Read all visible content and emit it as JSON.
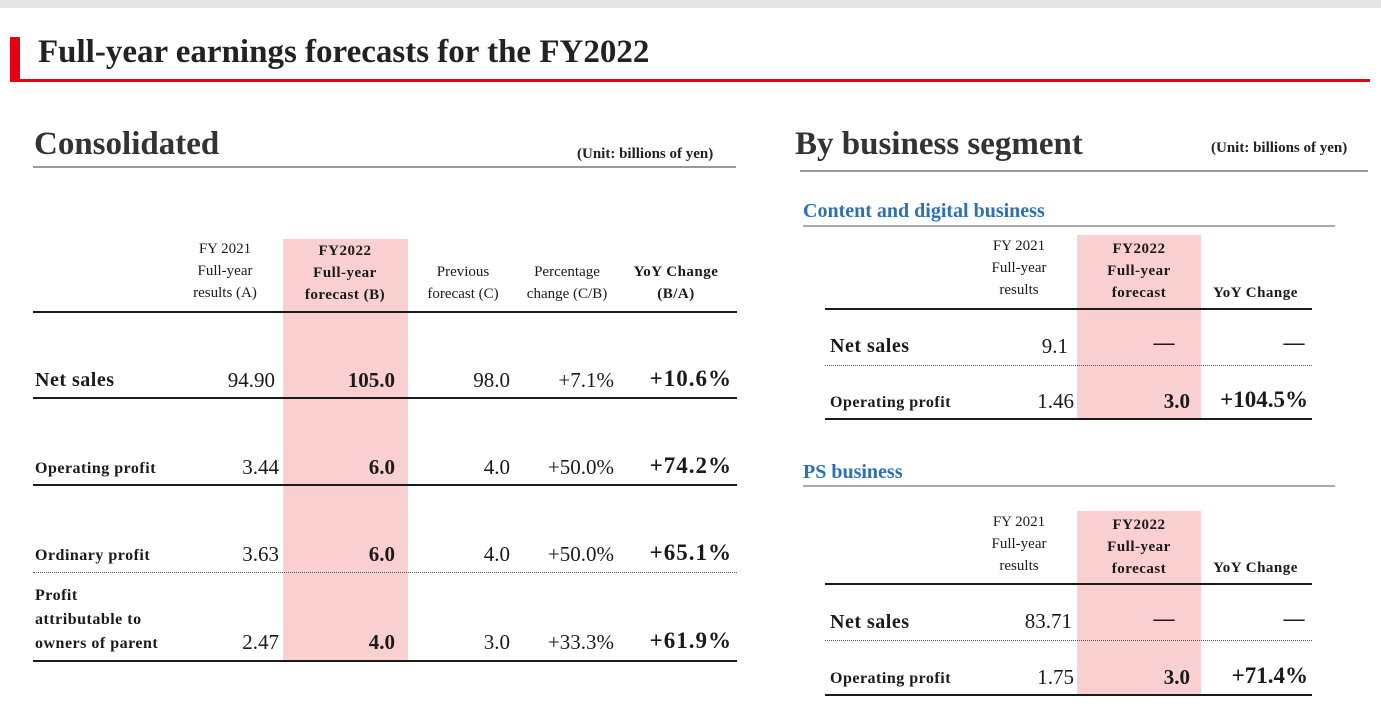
{
  "title": "Full-year earnings forecasts for the FY2022",
  "consolidated": {
    "heading": "Consolidated",
    "unit": "(Unit: billions of yen)",
    "headers": [
      "FY 2021\nFull-year\nresults (A)",
      "FY2022\nFull-year\nforecast (B)",
      "Previous\nforecast (C)",
      "Percentage\nchange (C/B)",
      "YoY Change\n(B/A)"
    ],
    "rows": [
      {
        "label": "Net sales",
        "a": "94.90",
        "b": "105.0",
        "c": "98.0",
        "pct": "+7.1%",
        "yoy": "+10.6%"
      },
      {
        "label": "Operating profit",
        "a": "3.44",
        "b": "6.0",
        "c": "4.0",
        "pct": "+50.0%",
        "yoy": "+74.2%"
      },
      {
        "label": "Ordinary profit",
        "a": "3.63",
        "b": "6.0",
        "c": "4.0",
        "pct": "+50.0%",
        "yoy": "+65.1%"
      },
      {
        "label": "Profit\nattributable to\nowners of parent",
        "a": "2.47",
        "b": "4.0",
        "c": "3.0",
        "pct": "+33.3%",
        "yoy": "+61.9%"
      }
    ]
  },
  "segment": {
    "heading": "By business segment",
    "unit": "(Unit: billions of yen)",
    "sections": [
      {
        "title": "Content and digital business",
        "headers": [
          "FY 2021\nFull-year\nresults",
          "FY2022\nFull-year\nforecast",
          "YoY Change"
        ],
        "rows": [
          {
            "label": "Net sales",
            "a": "9.1",
            "b": "—",
            "yoy": "—"
          },
          {
            "label": "Operating profit",
            "a": "1.46",
            "b": "3.0",
            "yoy": "+104.5%"
          }
        ]
      },
      {
        "title": "PS business",
        "headers": [
          "FY 2021\nFull-year\nresults",
          "FY2022\nFull-year\nforecast",
          "YoY Change"
        ],
        "rows": [
          {
            "label": "Net sales",
            "a": "83.71",
            "b": "—",
            "yoy": "—"
          },
          {
            "label": "Operating profit",
            "a": "1.75",
            "b": "3.0",
            "yoy": "+71.4%"
          }
        ]
      }
    ]
  },
  "colors": {
    "accent": "#e60012",
    "highlight": "#f9cfcf",
    "section_title": "#2a71b8"
  }
}
